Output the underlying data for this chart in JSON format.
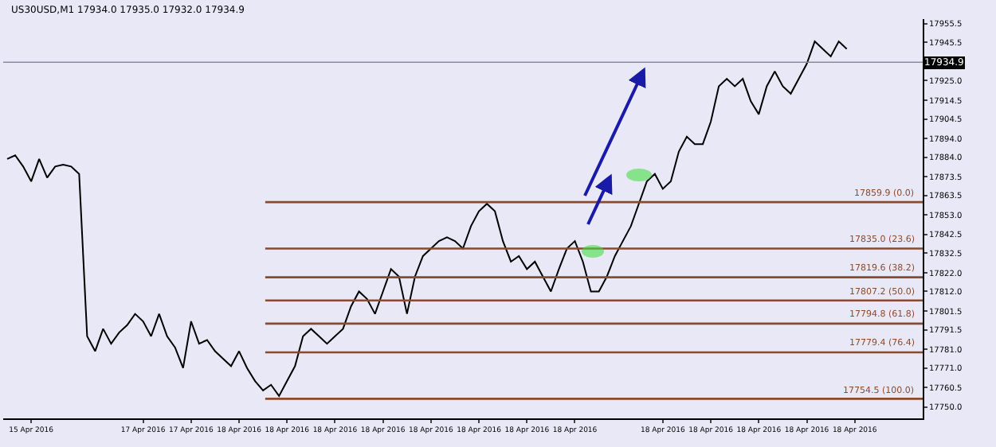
{
  "chart_data": {
    "type": "line",
    "title": "US30USD,M1 17934.0 17935.0 17932.0 17934.9",
    "categories": [
      null,
      null,
      null,
      "15 Apr 2016",
      null,
      null,
      null,
      null,
      null,
      null,
      null,
      null,
      null,
      null,
      null,
      null,
      null,
      "17 Apr 2016",
      null,
      null,
      null,
      null,
      null,
      "17 Apr 2016",
      null,
      null,
      null,
      null,
      null,
      "18 Apr 2016",
      null,
      null,
      null,
      null,
      null,
      "18 Apr 2016",
      null,
      null,
      null,
      null,
      null,
      "18 Apr 2016",
      null,
      null,
      null,
      null,
      null,
      "18 Apr 2016",
      null,
      null,
      null,
      null,
      null,
      "18 Apr 2016",
      null,
      null,
      null,
      null,
      null,
      "18 Apr 2016",
      null,
      null,
      null,
      null,
      null,
      "18 Apr 2016",
      null,
      null,
      null,
      null,
      null,
      "18 Apr 2016",
      null,
      null,
      null,
      null,
      null,
      null,
      null,
      null,
      null,
      null,
      "18 Apr 2016",
      null,
      null,
      null,
      null,
      null,
      "18 Apr 2016",
      null,
      null,
      null,
      null,
      null,
      "18 Apr 2016",
      null,
      null,
      null,
      null,
      null,
      "18 Apr 2016",
      null,
      null,
      null,
      null,
      null,
      "18 Apr 2016",
      null,
      null,
      null,
      null,
      null,
      null,
      null,
      null
    ],
    "series": [
      {
        "color": "#000000",
        "values": [
          17883,
          17885,
          17879,
          17871,
          17883,
          17873,
          17879,
          17880,
          17879,
          17875,
          17788,
          17780,
          17792,
          17784,
          17790,
          17794,
          17800,
          17796,
          17788,
          17800,
          17788,
          17782,
          17771,
          17796,
          17784,
          17786,
          17780,
          17776,
          17772,
          17780,
          17771,
          17764,
          17759,
          17762,
          17756,
          17764,
          17772,
          17788,
          17792,
          17788,
          17784,
          17788,
          17792,
          17804,
          17812,
          17808,
          17800,
          17812,
          17824,
          17820,
          17800,
          17820,
          17831,
          17835,
          17839,
          17841,
          17839,
          17835,
          17847,
          17855,
          17859,
          17855,
          17839,
          17828,
          17831,
          17824,
          17828,
          17820,
          17812,
          17824,
          17835,
          17839,
          17828,
          17812,
          17812,
          17820,
          17831,
          17839,
          17847,
          17859,
          17871,
          17875,
          17867,
          17871,
          17887,
          17895,
          17891,
          17891,
          17903,
          17922,
          17926,
          17922,
          17926,
          17914,
          17907,
          17922,
          17930,
          17922,
          17918,
          17926,
          17934,
          17946,
          17942,
          17938,
          17946,
          17942,
          null,
          null,
          null,
          null,
          null,
          null,
          null,
          null,
          null
        ]
      }
    ],
    "ylim": [
      17744,
      17958
    ],
    "yticks": [
      {
        "value": 17955.5,
        "label": "17955.5"
      },
      {
        "value": 17945.5,
        "label": "17945.5"
      },
      {
        "value": 17925,
        "label": "17925.0"
      },
      {
        "value": 17914.5,
        "label": "17914.5"
      },
      {
        "value": 17904.5,
        "label": "17904.5"
      },
      {
        "value": 17894,
        "label": "17894.0"
      },
      {
        "value": 17884,
        "label": "17884.0"
      },
      {
        "value": 17873.5,
        "label": "17873.5"
      },
      {
        "value": 17863.5,
        "label": "17863.5"
      },
      {
        "value": 17853,
        "label": "17853.0"
      },
      {
        "value": 17842.5,
        "label": "17842.5"
      },
      {
        "value": 17832.5,
        "label": "17832.5"
      },
      {
        "value": 17822,
        "label": "17822.0"
      },
      {
        "value": 17812,
        "label": "17812.0"
      },
      {
        "value": 17801.5,
        "label": "17801.5"
      },
      {
        "value": 17791.5,
        "label": "17791.5"
      },
      {
        "value": 17781,
        "label": "17781.0"
      },
      {
        "value": 17771,
        "label": "17771.0"
      },
      {
        "value": 17760.5,
        "label": "17760.5"
      },
      {
        "value": 17750,
        "label": "17750.0"
      }
    ],
    "ref_lines": [
      {
        "axis": "y",
        "value": 17934.9,
        "label": "17934.9",
        "color": "#8a8a9a"
      },
      {
        "axis": "y",
        "value": 17859.9,
        "label": "17859.9 (0.0)",
        "color": "#8b4a2b"
      },
      {
        "axis": "y",
        "value": 17835.0,
        "label": "17835.0 (23.6)",
        "color": "#8b4a2b"
      },
      {
        "axis": "y",
        "value": 17819.6,
        "label": "17819.6 (38.2)",
        "color": "#8b4a2b"
      },
      {
        "axis": "y",
        "value": 17807.2,
        "label": "17807.2 (50.0)",
        "color": "#8b4a2b"
      },
      {
        "axis": "y",
        "value": 17794.8,
        "label": "17794.8 (61.8)",
        "color": "#8b4a2b"
      },
      {
        "axis": "y",
        "value": 17779.4,
        "label": "17779.4 (76.4)",
        "color": "#8b4a2b"
      },
      {
        "axis": "y",
        "value": 17754.5,
        "label": "17754.5 (100.0)",
        "color": "#8b4a2b"
      }
    ],
    "grid": false
  }
}
